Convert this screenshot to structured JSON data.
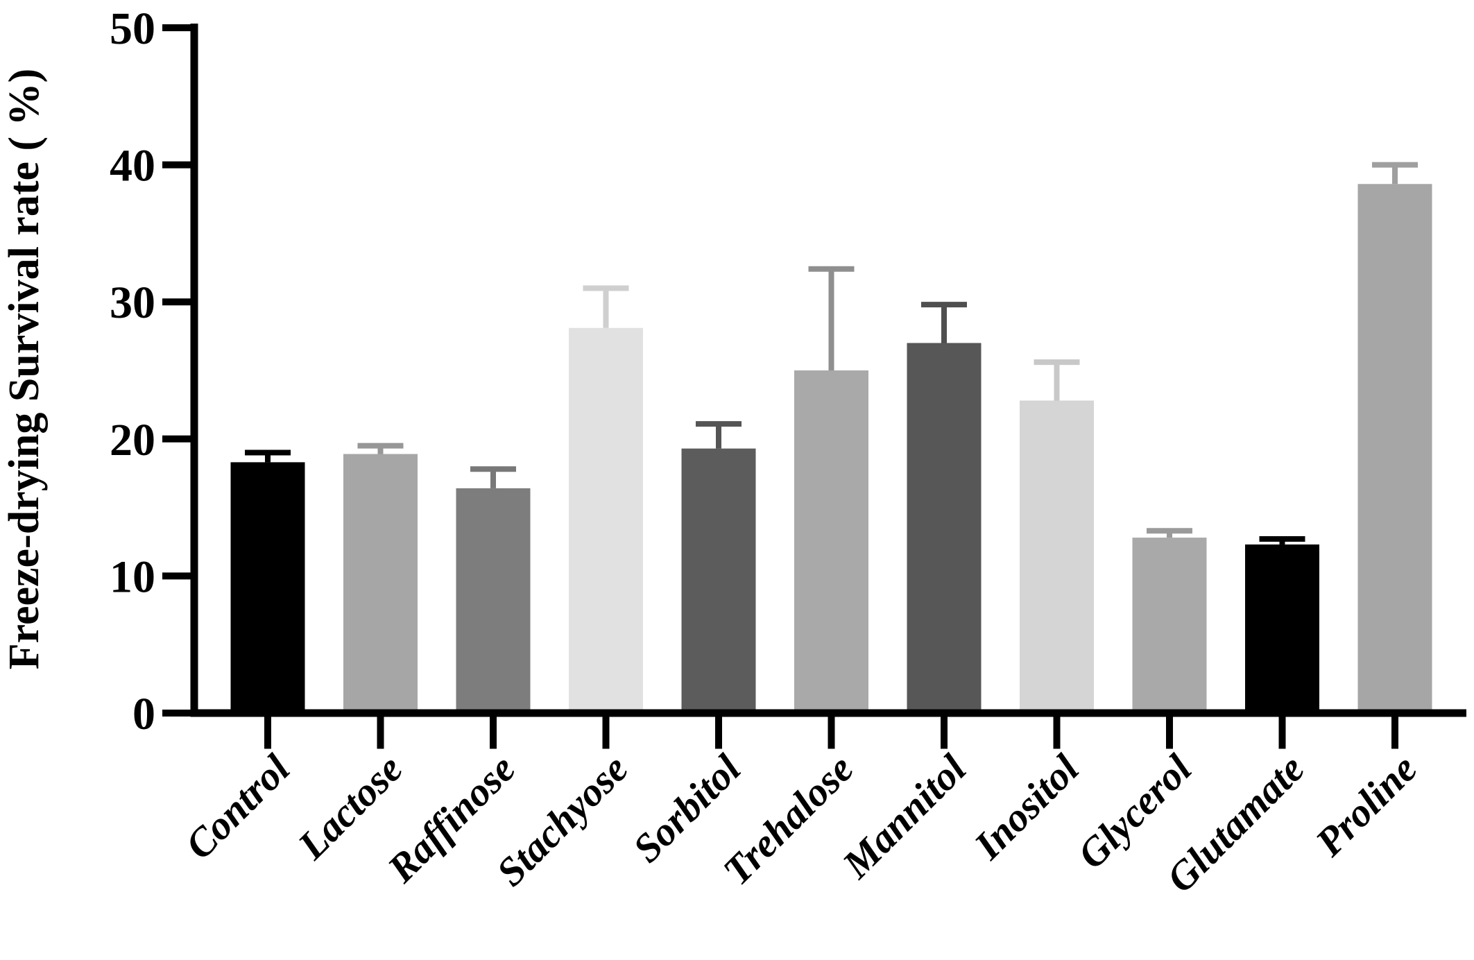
{
  "chart_data": {
    "type": "bar",
    "title": "",
    "xlabel": "",
    "ylabel": "Freeze-drying Survival rate ( %)",
    "ylim": [
      0,
      50
    ],
    "yticks": [
      0,
      10,
      20,
      30,
      40,
      50
    ],
    "grid": false,
    "legend_position": "none",
    "error_bars": "plus-sd-caps",
    "categories": [
      "Control",
      "Lactose",
      "Raffinose",
      "Stachyose",
      "Sorbitol",
      "Trehalose",
      "Mannitol",
      "Inositol",
      "Glycerol",
      "Glutamate",
      "Proline"
    ],
    "values": [
      18.3,
      18.9,
      16.4,
      28.1,
      19.3,
      25.0,
      27.0,
      22.8,
      12.8,
      12.3,
      38.6
    ],
    "errors_up": [
      0.7,
      0.6,
      1.4,
      2.9,
      1.8,
      7.4,
      2.8,
      2.8,
      0.5,
      0.4,
      1.4
    ],
    "bar_colors": [
      "#000000",
      "#a6a6a6",
      "#7d7d7d",
      "#e1e1e1",
      "#5c5c5c",
      "#a9a9a9",
      "#575757",
      "#d5d5d5",
      "#a9a9a9",
      "#000000",
      "#a6a6a6"
    ],
    "error_bar_colors": [
      "#000000",
      "#979797",
      "#787878",
      "#cfcfcf",
      "#555555",
      "#8f8f8f",
      "#4f4f4f",
      "#c8c8c8",
      "#9a9a9a",
      "#000000",
      "#9f9f9f"
    ],
    "axis_color": "#000000",
    "background_color": "#ffffff"
  }
}
